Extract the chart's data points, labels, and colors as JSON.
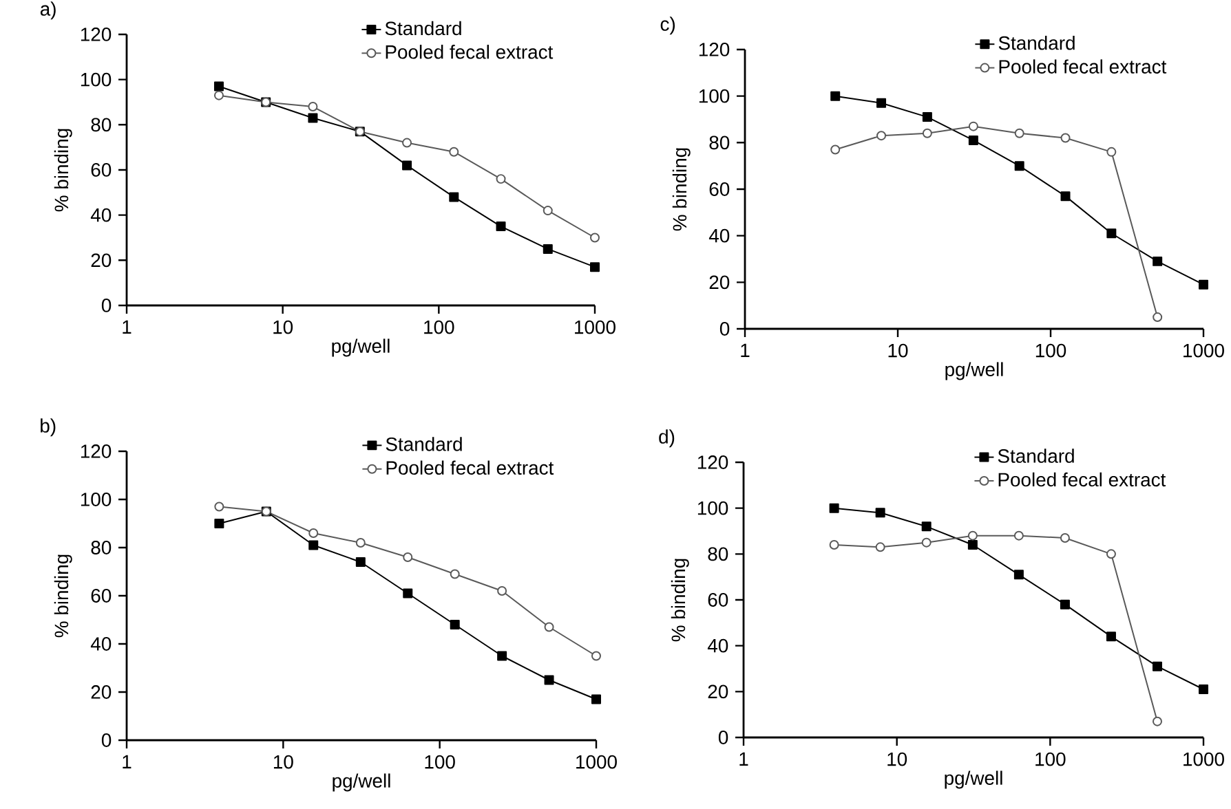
{
  "chart_data": [
    {
      "type": "line",
      "title": "a)",
      "xlabel": "pg/well",
      "ylabel": "% binding",
      "log": "x",
      "xlim": [
        1,
        1000
      ],
      "xticks": [
        1,
        10,
        100,
        1000
      ],
      "ylim": [
        0,
        120
      ],
      "yticks": [
        0,
        20,
        40,
        60,
        80,
        100,
        120
      ],
      "legend": "top right",
      "series": [
        {
          "name": "Standard",
          "color": "#000000",
          "marker": "square",
          "x": [
            3.9,
            7.8,
            15.6,
            31.25,
            62.5,
            125,
            250,
            500,
            1000
          ],
          "values": [
            97,
            90,
            83,
            77,
            62,
            48,
            35,
            25,
            17
          ]
        },
        {
          "name": "Pooled fecal extract",
          "color": "#595959",
          "marker": "circle",
          "x": [
            3.9,
            7.8,
            15.6,
            31.25,
            62.5,
            125,
            250,
            500,
            1000
          ],
          "values": [
            93,
            90,
            88,
            77,
            72,
            68,
            56,
            42,
            30
          ]
        }
      ]
    },
    {
      "type": "line",
      "title": "c)",
      "xlabel": "pg/well",
      "ylabel": "% binding",
      "log": "x",
      "xlim": [
        1,
        1000
      ],
      "xticks": [
        1,
        10,
        100,
        1000
      ],
      "ylim": [
        0,
        120
      ],
      "yticks": [
        0,
        20,
        40,
        60,
        80,
        100,
        120
      ],
      "legend": "top right",
      "series": [
        {
          "name": "Standard",
          "color": "#000000",
          "marker": "square",
          "x": [
            3.9,
            7.8,
            15.6,
            31.25,
            62.5,
            125,
            250,
            500,
            1000
          ],
          "values": [
            100,
            97,
            91,
            81,
            70,
            57,
            41,
            29,
            19
          ]
        },
        {
          "name": "Pooled fecal extract",
          "color": "#595959",
          "marker": "circle",
          "x": [
            3.9,
            7.8,
            15.6,
            31.25,
            62.5,
            125,
            250,
            500
          ],
          "values": [
            77,
            83,
            84,
            87,
            84,
            82,
            76,
            5
          ]
        }
      ]
    },
    {
      "type": "line",
      "title": "b)",
      "xlabel": "pg/well",
      "ylabel": "% binding",
      "log": "x",
      "xlim": [
        1,
        1000
      ],
      "xticks": [
        1,
        10,
        100,
        1000
      ],
      "ylim": [
        0,
        120
      ],
      "yticks": [
        0,
        20,
        40,
        60,
        80,
        100,
        120
      ],
      "legend": "top right",
      "series": [
        {
          "name": "Standard",
          "color": "#000000",
          "marker": "square",
          "x": [
            3.9,
            7.8,
            15.6,
            31.25,
            62.5,
            125,
            250,
            500,
            1000
          ],
          "values": [
            90,
            95,
            81,
            74,
            61,
            48,
            35,
            25,
            17
          ]
        },
        {
          "name": "Pooled fecal extract",
          "color": "#595959",
          "marker": "circle",
          "x": [
            3.9,
            7.8,
            15.6,
            31.25,
            62.5,
            125,
            250,
            500,
            1000
          ],
          "values": [
            97,
            95,
            86,
            82,
            76,
            69,
            62,
            47,
            35
          ]
        }
      ]
    },
    {
      "type": "line",
      "title": "d)",
      "xlabel": "pg/well",
      "ylabel": "% binding",
      "log": "x",
      "xlim": [
        1,
        1000
      ],
      "xticks": [
        1,
        10,
        100,
        1000
      ],
      "ylim": [
        0,
        120
      ],
      "yticks": [
        0,
        20,
        40,
        60,
        80,
        100,
        120
      ],
      "legend": "top right",
      "series": [
        {
          "name": "Standard",
          "color": "#000000",
          "marker": "square",
          "x": [
            3.9,
            7.8,
            15.6,
            31.25,
            62.5,
            125,
            250,
            500,
            1000
          ],
          "values": [
            100,
            98,
            92,
            84,
            71,
            58,
            44,
            31,
            21
          ]
        },
        {
          "name": "Pooled fecal extract",
          "color": "#595959",
          "marker": "circle",
          "x": [
            3.9,
            7.8,
            15.6,
            31.25,
            62.5,
            125,
            250,
            500
          ],
          "values": [
            84,
            83,
            85,
            88,
            88,
            87,
            80,
            7
          ]
        }
      ]
    }
  ]
}
